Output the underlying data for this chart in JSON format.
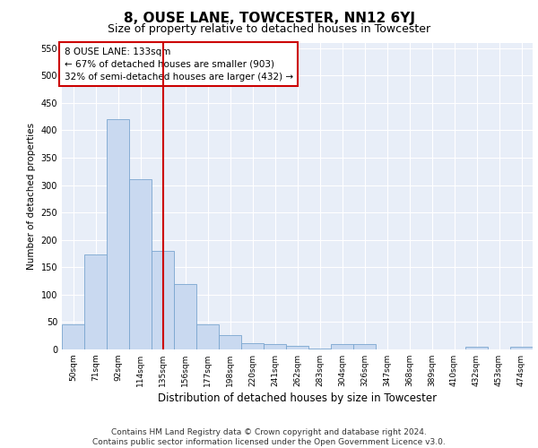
{
  "title": "8, OUSE LANE, TOWCESTER, NN12 6YJ",
  "subtitle": "Size of property relative to detached houses in Towcester",
  "xlabel": "Distribution of detached houses by size in Towcester",
  "ylabel": "Number of detached properties",
  "categories": [
    "50sqm",
    "71sqm",
    "92sqm",
    "114sqm",
    "135sqm",
    "156sqm",
    "177sqm",
    "198sqm",
    "220sqm",
    "241sqm",
    "262sqm",
    "283sqm",
    "304sqm",
    "326sqm",
    "347sqm",
    "368sqm",
    "389sqm",
    "410sqm",
    "432sqm",
    "453sqm",
    "474sqm"
  ],
  "values": [
    46,
    174,
    420,
    311,
    180,
    119,
    46,
    26,
    12,
    9,
    6,
    1,
    9,
    10,
    0,
    0,
    0,
    0,
    5,
    0,
    5
  ],
  "bar_color": "#c9d9f0",
  "bar_edge_color": "#7aa6d0",
  "vline_x": 4,
  "vline_color": "#cc0000",
  "annotation_text": "8 OUSE LANE: 133sqm\n← 67% of detached houses are smaller (903)\n32% of semi-detached houses are larger (432) →",
  "annotation_box_color": "#ffffff",
  "annotation_box_edge": "#cc0000",
  "ylim": [
    0,
    560
  ],
  "yticks": [
    0,
    50,
    100,
    150,
    200,
    250,
    300,
    350,
    400,
    450,
    500,
    550
  ],
  "background_color": "#e8eef8",
  "footer_text": "Contains HM Land Registry data © Crown copyright and database right 2024.\nContains public sector information licensed under the Open Government Licence v3.0.",
  "title_fontsize": 11,
  "subtitle_fontsize": 9,
  "xlabel_fontsize": 8.5,
  "ylabel_fontsize": 7.5,
  "annotation_fontsize": 7.5,
  "footer_fontsize": 6.5,
  "tick_fontsize": 6.5,
  "ytick_fontsize": 7
}
